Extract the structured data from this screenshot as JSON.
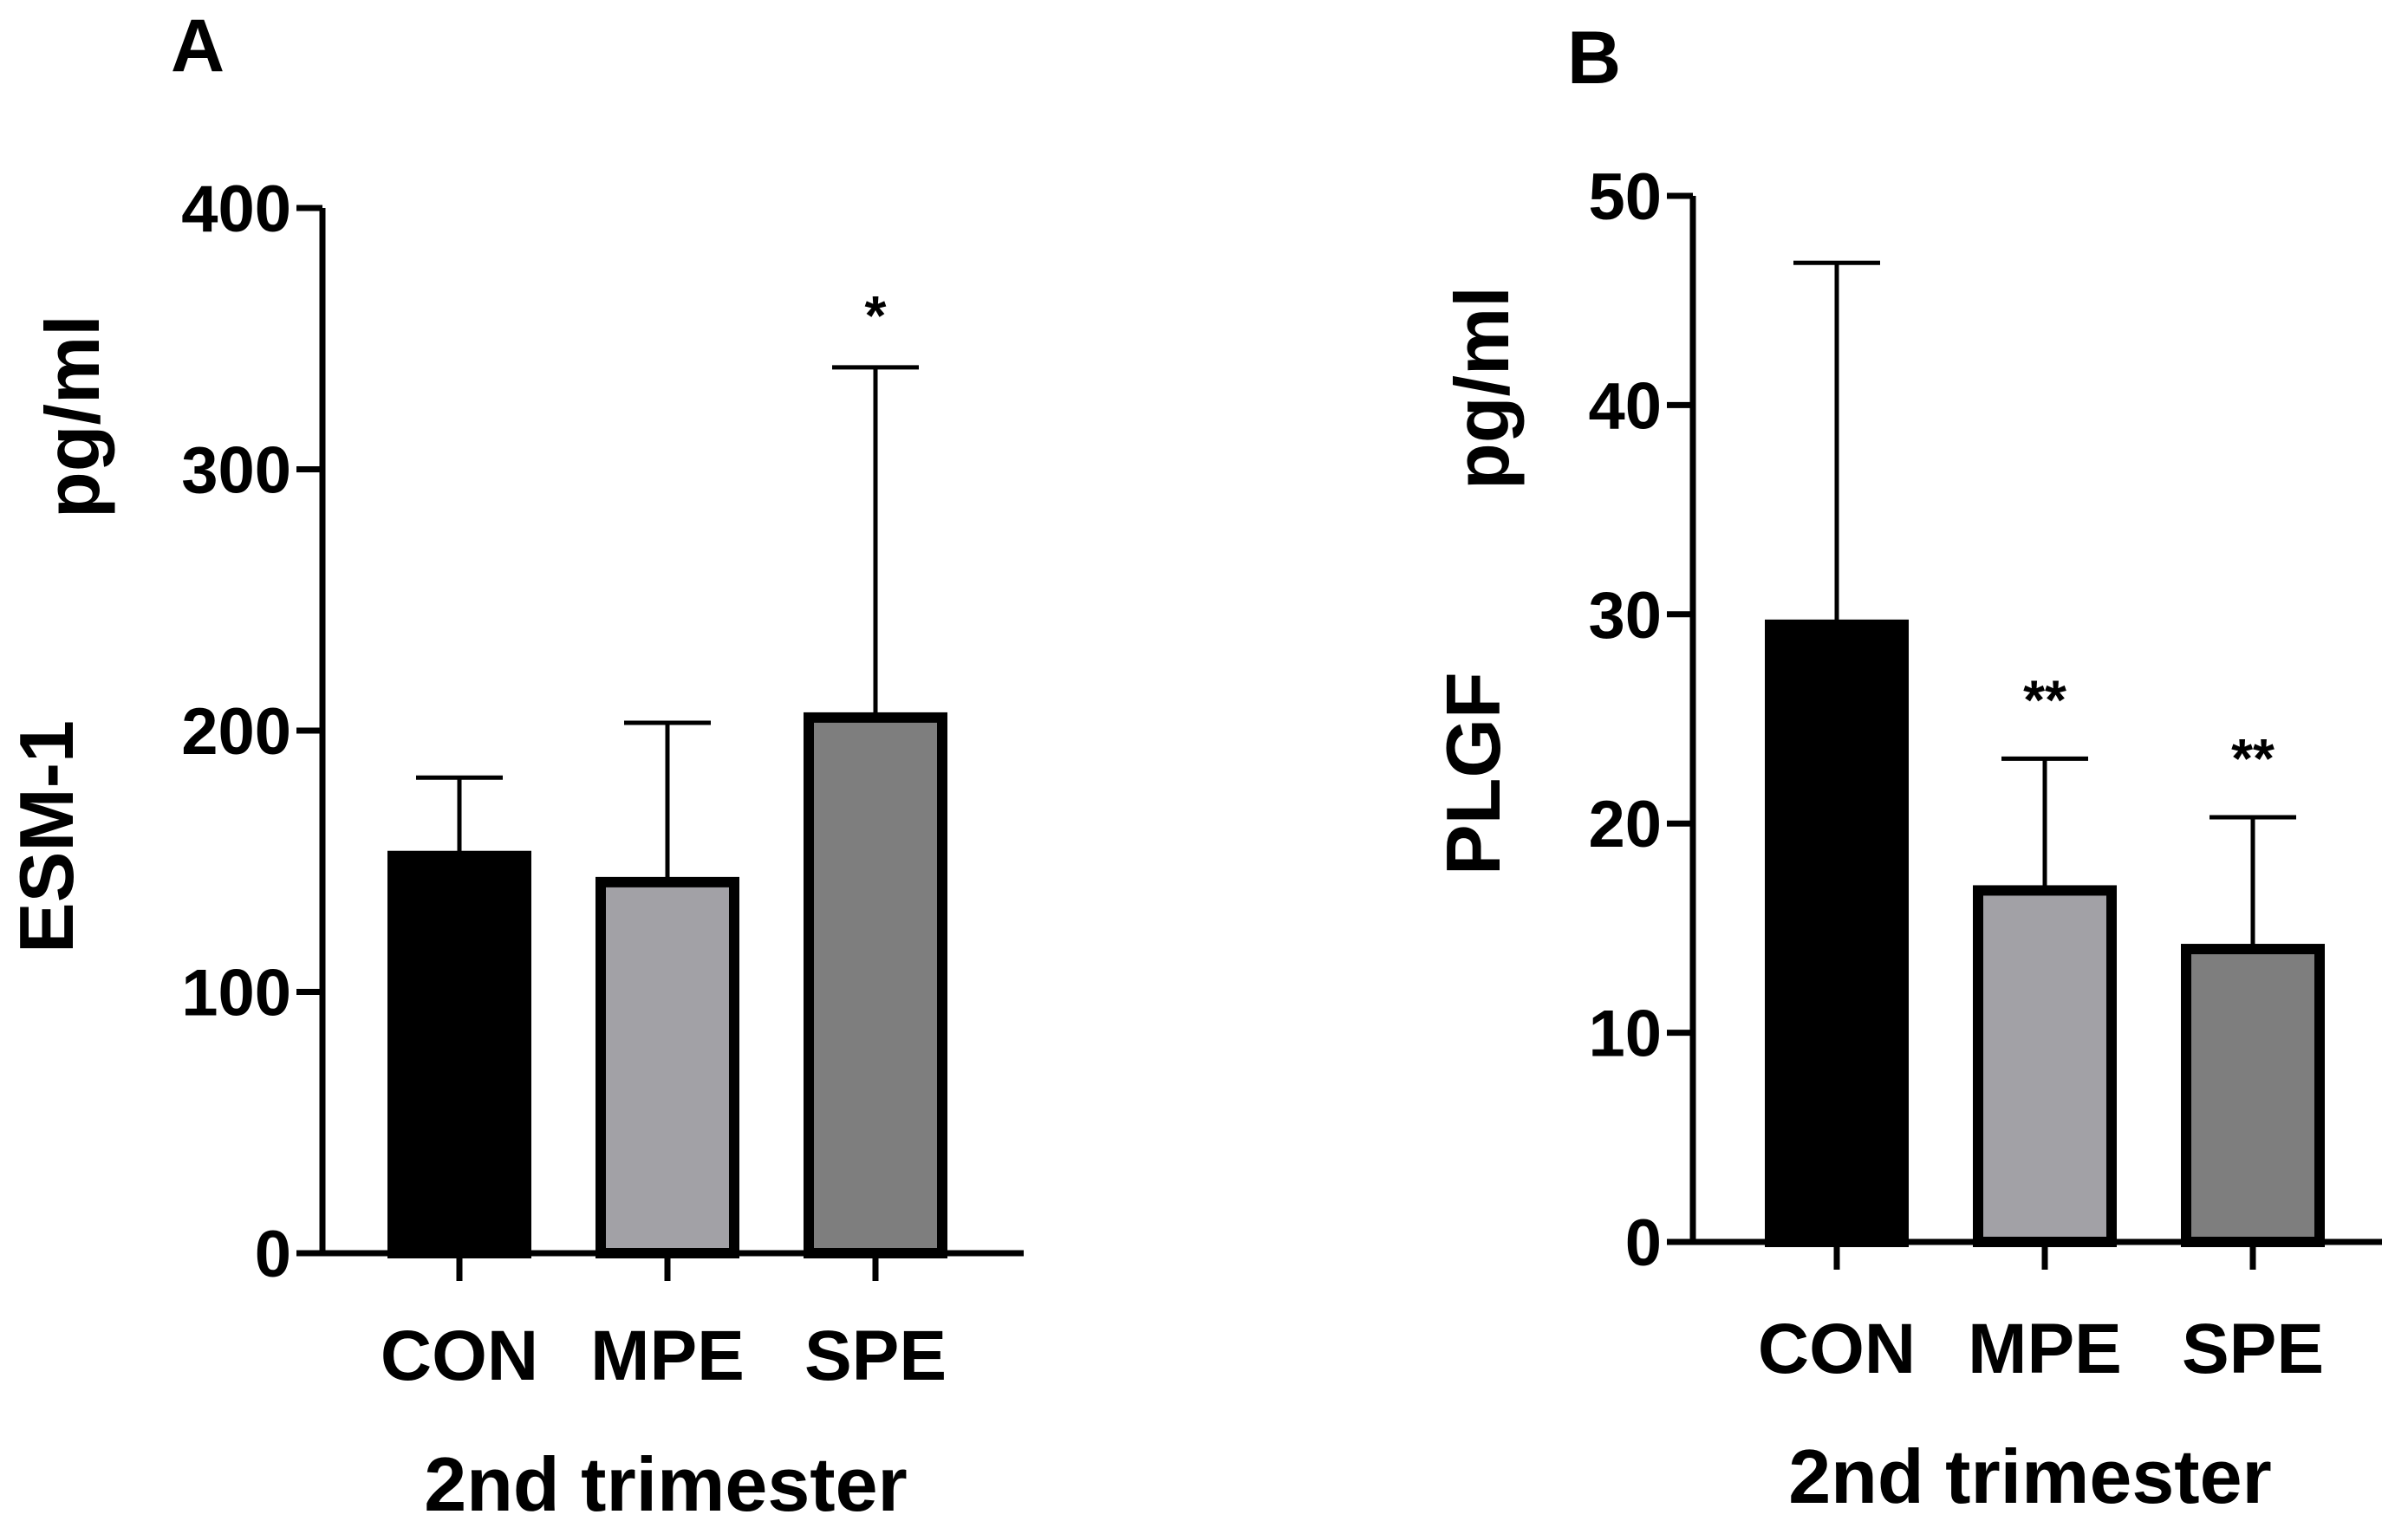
{
  "chart_data": [
    {
      "type": "bar",
      "panel": "A",
      "categories": [
        "CON",
        "MPE",
        "SPE"
      ],
      "values": [
        152,
        142,
        205
      ],
      "error_upper": [
        182,
        203,
        339
      ],
      "significance": [
        "",
        "",
        "*"
      ],
      "ylabel_name": "ESM-1",
      "ylabel_unit": "pg/ml",
      "xlabel": "2nd trimester",
      "ylim": [
        0,
        400
      ],
      "yticks": [
        0,
        100,
        200,
        300,
        400
      ],
      "colors": [
        "#000000",
        "#a2a1a6",
        "#7e7e7e"
      ]
    },
    {
      "type": "bar",
      "panel": "B",
      "categories": [
        "CON",
        "MPE",
        "SPE"
      ],
      "values": [
        29.5,
        16.8,
        14.0
      ],
      "error_upper": [
        46.8,
        23.1,
        20.3
      ],
      "significance": [
        "",
        "**",
        "**"
      ],
      "ylabel_name": "PLGF",
      "ylabel_unit": "pg/ml",
      "xlabel": "2nd trimester",
      "ylim": [
        0,
        50
      ],
      "yticks": [
        0,
        10,
        20,
        30,
        40,
        50
      ],
      "colors": [
        "#000000",
        "#a2a1a6",
        "#7e7e7e"
      ]
    }
  ]
}
